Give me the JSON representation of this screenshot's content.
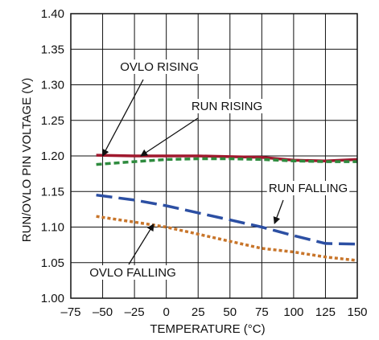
{
  "chart_data": {
    "type": "line",
    "title": "",
    "xlabel": "TEMPERATURE (°C)",
    "ylabel": "RUN/OVLO PIN VOLTAGE (V)",
    "xlim": [
      -75,
      150
    ],
    "ylim": [
      1.0,
      1.4
    ],
    "x_ticks": [
      -75,
      -50,
      -25,
      0,
      25,
      50,
      75,
      100,
      125,
      150
    ],
    "x_tick_labels": [
      "–75",
      "–50",
      "–25",
      "0",
      "25",
      "50",
      "75",
      "100",
      "125",
      "150"
    ],
    "y_ticks": [
      1.0,
      1.05,
      1.1,
      1.15,
      1.2,
      1.25,
      1.3,
      1.35,
      1.4
    ],
    "y_tick_labels": [
      "1.00",
      "1.05",
      "1.10",
      "1.15",
      "1.20",
      "1.25",
      "1.30",
      "1.35",
      "1.40"
    ],
    "grid": true,
    "series": [
      {
        "name": "OVLO RISING",
        "color": "#a0182e",
        "dash": "solid",
        "x": [
          -55,
          -25,
          0,
          25,
          50,
          75,
          100,
          125,
          150
        ],
        "y": [
          1.201,
          1.2,
          1.2,
          1.2,
          1.199,
          1.198,
          1.194,
          1.193,
          1.195
        ]
      },
      {
        "name": "RUN RISING",
        "color": "#2e8b3e",
        "dash": "dashed",
        "x": [
          -55,
          -25,
          0,
          25,
          50,
          75,
          100,
          125,
          150
        ],
        "y": [
          1.188,
          1.192,
          1.195,
          1.196,
          1.196,
          1.195,
          1.193,
          1.192,
          1.192
        ]
      },
      {
        "name": "RUN FALLING",
        "color": "#2c4fa3",
        "dash": "longdash",
        "x": [
          -55,
          -25,
          0,
          25,
          50,
          75,
          100,
          125,
          150
        ],
        "y": [
          1.145,
          1.138,
          1.13,
          1.12,
          1.11,
          1.1,
          1.088,
          1.077,
          1.076
        ]
      },
      {
        "name": "OVLO FALLING",
        "color": "#c8752a",
        "dash": "dotted",
        "x": [
          -55,
          -25,
          0,
          25,
          50,
          75,
          100,
          125,
          150
        ],
        "y": [
          1.115,
          1.107,
          1.1,
          1.09,
          1.08,
          1.07,
          1.065,
          1.058,
          1.053
        ]
      }
    ],
    "annotations": [
      {
        "text": "OVLO RISING",
        "target": [
          -50,
          1.2
        ]
      },
      {
        "text": "RUN RISING",
        "target": [
          -20,
          1.2
        ]
      },
      {
        "text": "RUN FALLING",
        "target": [
          85,
          1.105
        ]
      },
      {
        "text": "OVLO FALLING",
        "target": [
          -10,
          1.104
        ]
      }
    ]
  }
}
